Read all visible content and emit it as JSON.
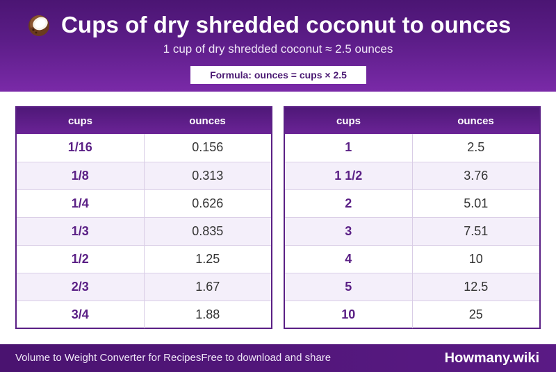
{
  "header": {
    "icon": "coconut-icon",
    "title": "Cups of dry shredded coconut to ounces",
    "subtitle": "1 cup of dry shredded coconut ≈ 2.5 ounces",
    "formula": "Formula: ounces = cups × 2.5"
  },
  "tables": {
    "left": {
      "col_cups": "cups",
      "col_ounces": "ounces",
      "rows": [
        {
          "cups": "1/16",
          "ounces": "0.156"
        },
        {
          "cups": "1/8",
          "ounces": "0.313"
        },
        {
          "cups": "1/4",
          "ounces": "0.626"
        },
        {
          "cups": "1/3",
          "ounces": "0.835"
        },
        {
          "cups": "1/2",
          "ounces": "1.25"
        },
        {
          "cups": "2/3",
          "ounces": "1.67"
        },
        {
          "cups": "3/4",
          "ounces": "1.88"
        }
      ]
    },
    "right": {
      "col_cups": "cups",
      "col_ounces": "ounces",
      "rows": [
        {
          "cups": "1",
          "ounces": "2.5"
        },
        {
          "cups": "1 1/2",
          "ounces": "3.76"
        },
        {
          "cups": "2",
          "ounces": "5.01"
        },
        {
          "cups": "3",
          "ounces": "7.51"
        },
        {
          "cups": "4",
          "ounces": "10"
        },
        {
          "cups": "5",
          "ounces": "12.5"
        },
        {
          "cups": "10",
          "ounces": "25"
        }
      ]
    }
  },
  "footer": {
    "left_text": "Volume to Weight Converter for Recipes",
    "middle_text": "Free to download and share",
    "brand": "Howmany.wiki"
  },
  "colors": {
    "primary": "#5a1f85",
    "header_dark": "#4b1573",
    "row_alt": "#f4effa"
  }
}
